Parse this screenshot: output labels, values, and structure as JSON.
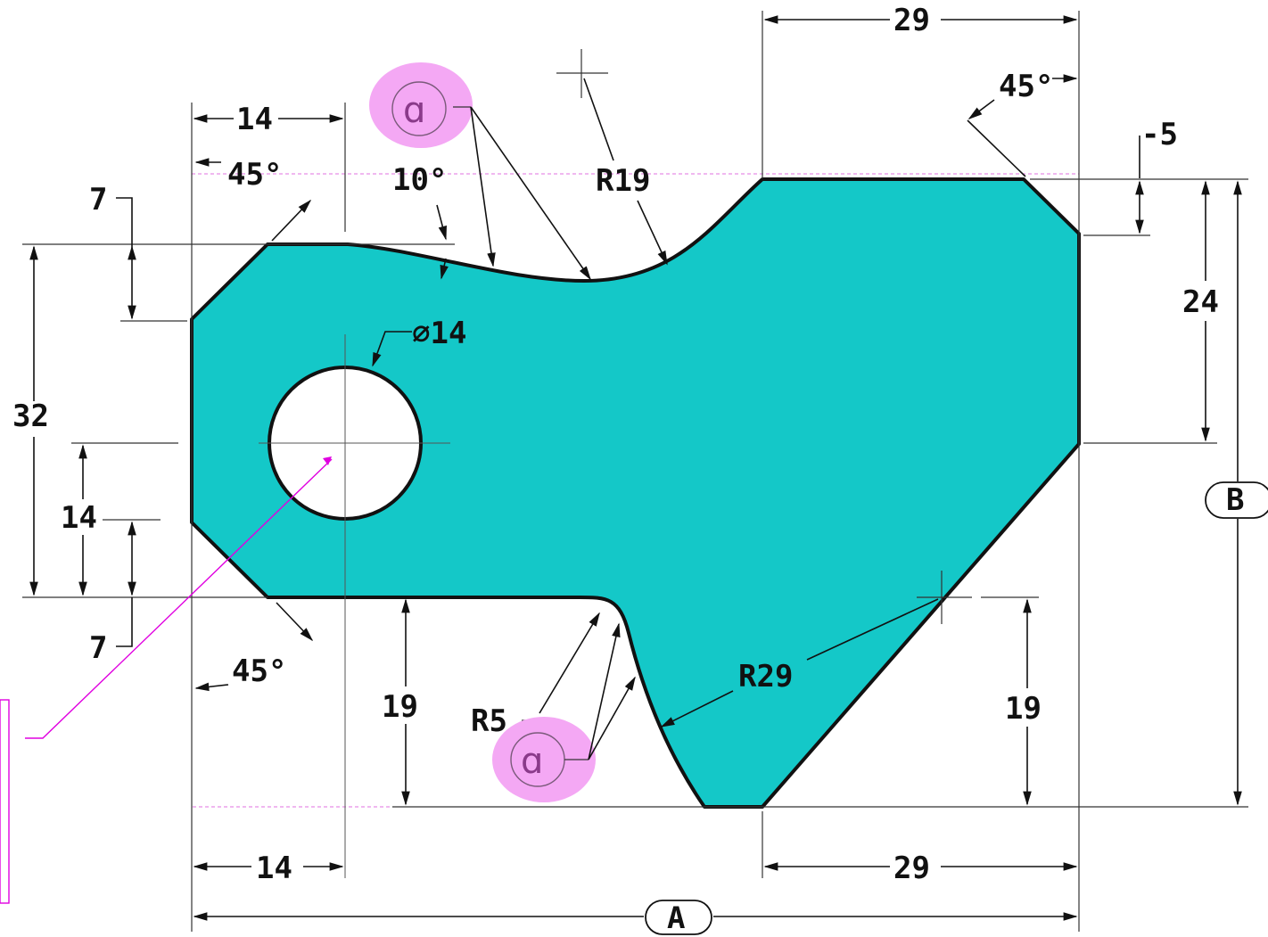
{
  "colors": {
    "part_fill": "#14c8c8",
    "outline": "#111111",
    "annotation": "#e000e0",
    "highlight": "#f4a8f4"
  },
  "dimensions": {
    "top_left_width": "14",
    "top_right_width": "29",
    "bottom_left_width": "14",
    "bottom_right_width": "29",
    "left_height_32": "32",
    "left_height_14": "14",
    "top_left_chamfer_7": "7",
    "bottom_left_chamfer_7": "7",
    "left_bottom_19": "19",
    "right_bottom_19": "19",
    "right_height_24": "24",
    "top_right_chamfer_5": "-5",
    "angle_top_left": "45°",
    "angle_bottom_left": "45°",
    "angle_top_right": "45°",
    "taper_angle": "10°",
    "radius_r19": "R19",
    "radius_r29": "R29",
    "radius_r5": "R5",
    "hole_diameter": "∅14",
    "datum_a": "A",
    "datum_b": "B"
  },
  "balloons": [
    {
      "symbol": "ɑ",
      "icon": "tangent-symbol-icon"
    },
    {
      "symbol": "ɑ",
      "icon": "tangent-symbol-icon"
    }
  ]
}
